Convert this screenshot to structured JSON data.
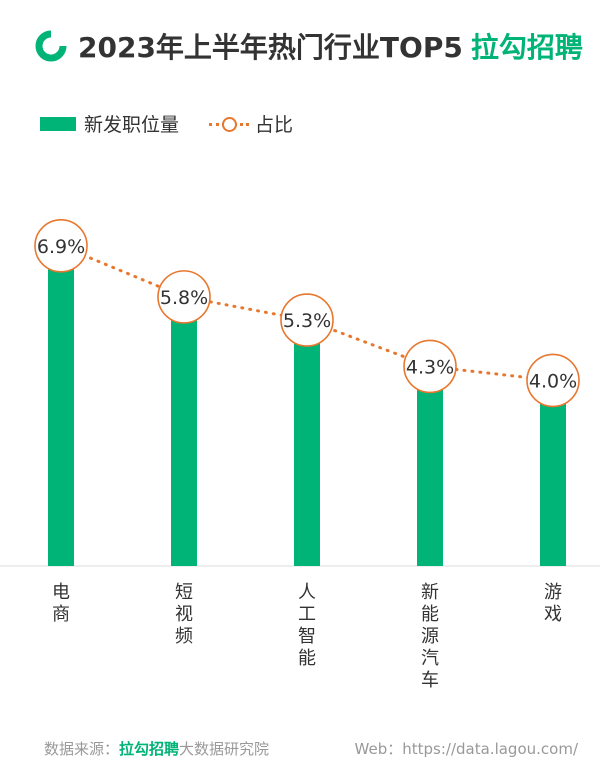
{
  "header": {
    "title": "2023年上半年热门行业TOP5",
    "brand": "拉勾招聘",
    "logo_icon": "lagou-ring-logo"
  },
  "legend": {
    "bar_label": "新发职位量",
    "line_label": "占比"
  },
  "chart_data": {
    "type": "bar",
    "title": "2023年上半年热门行业TOP5",
    "categories": [
      "电商",
      "短视频",
      "人工智能",
      "新能源汽车",
      "游戏"
    ],
    "series": [
      {
        "name": "新发职位量",
        "type": "bar",
        "values": [
          6.9,
          5.8,
          5.3,
          4.3,
          4.0
        ]
      },
      {
        "name": "占比",
        "type": "line",
        "values": [
          6.9,
          5.8,
          5.3,
          4.3,
          4.0
        ],
        "labels": [
          "6.9%",
          "5.8%",
          "5.3%",
          "4.3%",
          "4.0%"
        ]
      }
    ],
    "ylim": [
      0,
      7.5
    ],
    "grid": false,
    "legend_position": "top-left",
    "colors": {
      "bar": "#00b377",
      "line": "#e8772e"
    }
  },
  "footer": {
    "source_prefix": "数据来源：",
    "source_brand": "拉勾招聘",
    "source_suffix": "大数据研究院",
    "web": "Web：https://data.lagou.com/"
  }
}
